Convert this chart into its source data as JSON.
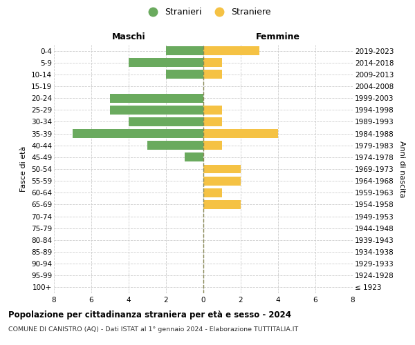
{
  "age_groups": [
    "100+",
    "95-99",
    "90-94",
    "85-89",
    "80-84",
    "75-79",
    "70-74",
    "65-69",
    "60-64",
    "55-59",
    "50-54",
    "45-49",
    "40-44",
    "35-39",
    "30-34",
    "25-29",
    "20-24",
    "15-19",
    "10-14",
    "5-9",
    "0-4"
  ],
  "birth_years": [
    "≤ 1923",
    "1924-1928",
    "1929-1933",
    "1934-1938",
    "1939-1943",
    "1944-1948",
    "1949-1953",
    "1954-1958",
    "1959-1963",
    "1964-1968",
    "1969-1973",
    "1974-1978",
    "1979-1983",
    "1984-1988",
    "1989-1993",
    "1994-1998",
    "1999-2003",
    "2004-2008",
    "2009-2013",
    "2014-2018",
    "2019-2023"
  ],
  "maschi": [
    0,
    0,
    0,
    0,
    0,
    0,
    0,
    0,
    0,
    0,
    0,
    1,
    3,
    7,
    4,
    5,
    5,
    0,
    2,
    4,
    2
  ],
  "femmine": [
    0,
    0,
    0,
    0,
    0,
    0,
    0,
    2,
    1,
    2,
    2,
    0,
    1,
    4,
    1,
    1,
    0,
    0,
    1,
    1,
    3
  ],
  "color_maschi": "#6aaa5e",
  "color_femmine": "#f5c244",
  "title": "Popolazione per cittadinanza straniera per età e sesso - 2024",
  "subtitle": "COMUNE DI CANISTRO (AQ) - Dati ISTAT al 1° gennaio 2024 - Elaborazione TUTTITALIA.IT",
  "xlabel_left": "Maschi",
  "xlabel_right": "Femmine",
  "ylabel_left": "Fasce di età",
  "ylabel_right": "Anni di nascita",
  "legend_maschi": "Stranieri",
  "legend_femmine": "Straniere",
  "xlim": 8,
  "background_color": "#ffffff",
  "grid_color": "#cccccc"
}
